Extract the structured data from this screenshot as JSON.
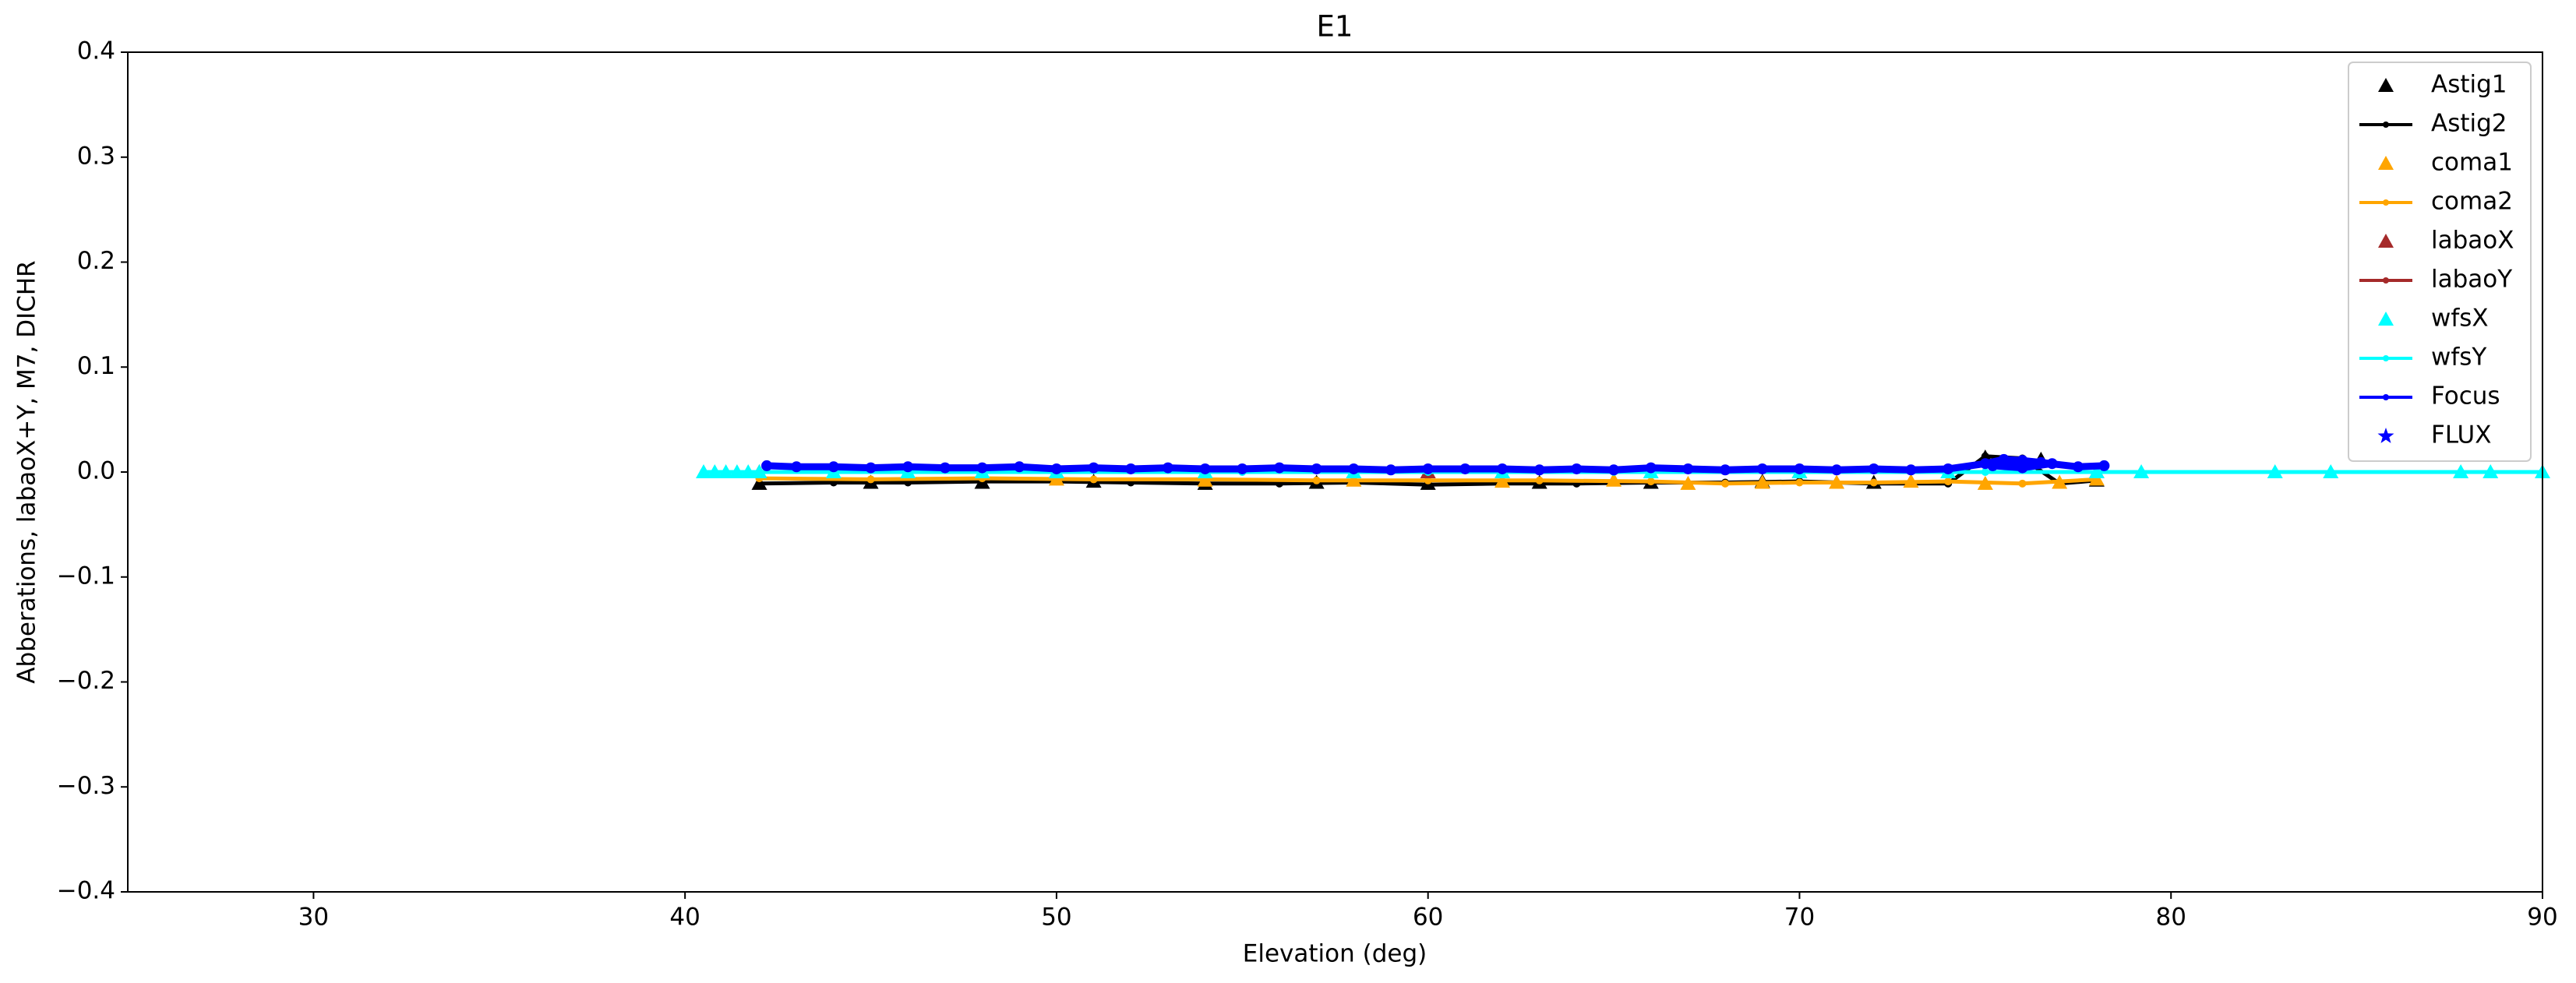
{
  "chart_data": {
    "type": "line",
    "title": "E1",
    "xlabel": "Elevation (deg)",
    "ylabel": "Abberations, labaoX+Y, M7, DICHR",
    "xlim": [
      25,
      90
    ],
    "ylim": [
      -0.4,
      0.4
    ],
    "xticks": [
      30,
      40,
      50,
      60,
      70,
      80,
      90
    ],
    "yticks": [
      {
        "value": -0.4,
        "label": "−0.4"
      },
      {
        "value": -0.3,
        "label": "−0.3"
      },
      {
        "value": -0.2,
        "label": "−0.2"
      },
      {
        "value": -0.1,
        "label": "−0.1"
      },
      {
        "value": 0,
        "label": "0.0"
      },
      0.1,
      0.2,
      0.3,
      0.4
    ],
    "legend": "upper right",
    "series": [
      {
        "name": "Astig1",
        "color": "#000000",
        "marker": "triangle",
        "line": false,
        "x": [
          42,
          45,
          48,
          51,
          54,
          57,
          60,
          63,
          66,
          69,
          72,
          75,
          76.5,
          78
        ],
        "values": [
          -0.011,
          -0.01,
          -0.01,
          -0.009,
          -0.011,
          -0.01,
          -0.011,
          -0.01,
          -0.01,
          -0.009,
          -0.01,
          0.014,
          0.012,
          -0.008
        ]
      },
      {
        "name": "Astig2",
        "color": "#000000",
        "marker": "dot",
        "line": true,
        "x": [
          42,
          44,
          46,
          48,
          50,
          52,
          54,
          56,
          58,
          60,
          62,
          64,
          66,
          68,
          70,
          72,
          74,
          75,
          76,
          77,
          78
        ],
        "values": [
          -0.011,
          -0.01,
          -0.01,
          -0.009,
          -0.009,
          -0.01,
          -0.011,
          -0.011,
          -0.01,
          -0.012,
          -0.011,
          -0.011,
          -0.01,
          -0.01,
          -0.009,
          -0.011,
          -0.011,
          0.015,
          0.013,
          -0.011,
          -0.008
        ]
      },
      {
        "name": "coma1",
        "color": "#ffa500",
        "marker": "triangle",
        "line": false,
        "x": [
          50,
          54,
          58,
          62,
          65,
          67,
          69,
          71,
          73,
          75,
          77,
          78
        ],
        "values": [
          -0.007,
          -0.008,
          -0.008,
          -0.009,
          -0.008,
          -0.011,
          -0.01,
          -0.01,
          -0.009,
          -0.011,
          -0.01,
          -0.007
        ]
      },
      {
        "name": "coma2",
        "color": "#ffa500",
        "marker": "dot",
        "line": true,
        "x": [
          42,
          45,
          48,
          51,
          54,
          57,
          60,
          63,
          66,
          68,
          70,
          72,
          74,
          76,
          78
        ],
        "values": [
          -0.006,
          -0.007,
          -0.006,
          -0.007,
          -0.007,
          -0.008,
          -0.008,
          -0.008,
          -0.009,
          -0.011,
          -0.01,
          -0.01,
          -0.009,
          -0.011,
          -0.007
        ]
      },
      {
        "name": "labaoX",
        "color": "#a52a2a",
        "marker": "triangle",
        "line": false,
        "x": [
          42,
          50,
          60,
          70,
          78
        ],
        "values": [
          0,
          0,
          0,
          0,
          0
        ]
      },
      {
        "name": "labaoY",
        "color": "#a52a2a",
        "marker": "dot",
        "line": true,
        "x": [
          42,
          50,
          60,
          70,
          78
        ],
        "values": [
          0,
          0,
          0,
          0,
          0
        ]
      },
      {
        "name": "wfsX",
        "color": "#00ffff",
        "marker": "triangle",
        "line": false,
        "x": [
          40.5,
          40.8,
          41.1,
          41.4,
          41.7,
          42,
          44,
          46,
          48,
          50,
          54,
          58,
          62,
          66,
          70,
          74,
          78,
          79.2,
          82.8,
          84.3,
          87.8,
          88.6,
          90
        ],
        "values": [
          0,
          0,
          0,
          0,
          0,
          0,
          0,
          0,
          0,
          0,
          0,
          0,
          0,
          0,
          0,
          0,
          0,
          0,
          0,
          0,
          0,
          0,
          0
        ]
      },
      {
        "name": "wfsY",
        "color": "#00ffff",
        "marker": "dot",
        "line": true,
        "x": [
          40.5,
          42,
          46,
          50,
          55,
          60,
          65,
          70,
          75,
          78,
          79.2,
          82.8,
          84.3,
          87.8,
          88.6,
          90
        ],
        "values": [
          0,
          0,
          0,
          0,
          0,
          0,
          0,
          0,
          0,
          0,
          0,
          0,
          0,
          0,
          0,
          0
        ]
      },
      {
        "name": "Focus",
        "color": "#0000ff",
        "marker": "dot",
        "line": true,
        "x": [
          42.2,
          43,
          44,
          45,
          46,
          47,
          48,
          49,
          50,
          51,
          52,
          53,
          54,
          55,
          56,
          57,
          58,
          59,
          60,
          61,
          62,
          63,
          64,
          65,
          66,
          67,
          68,
          69,
          70,
          71,
          72,
          73,
          74,
          75,
          75.5,
          76,
          76.8,
          76,
          75.2,
          76.5,
          77.5,
          78.2
        ],
        "values": [
          0.006,
          0.005,
          0.005,
          0.004,
          0.005,
          0.004,
          0.004,
          0.005,
          0.003,
          0.004,
          0.003,
          0.004,
          0.003,
          0.003,
          0.004,
          0.003,
          0.003,
          0.002,
          0.003,
          0.003,
          0.003,
          0.002,
          0.003,
          0.002,
          0.004,
          0.003,
          0.002,
          0.003,
          0.003,
          0.002,
          0.003,
          0.002,
          0.003,
          0.008,
          0.012,
          0.011,
          0.008,
          0.004,
          0.006,
          0.009,
          0.005,
          0.006
        ]
      },
      {
        "name": "FLUX",
        "color": "#0000ff",
        "marker": "star",
        "line": false,
        "x": [],
        "values": []
      }
    ]
  }
}
